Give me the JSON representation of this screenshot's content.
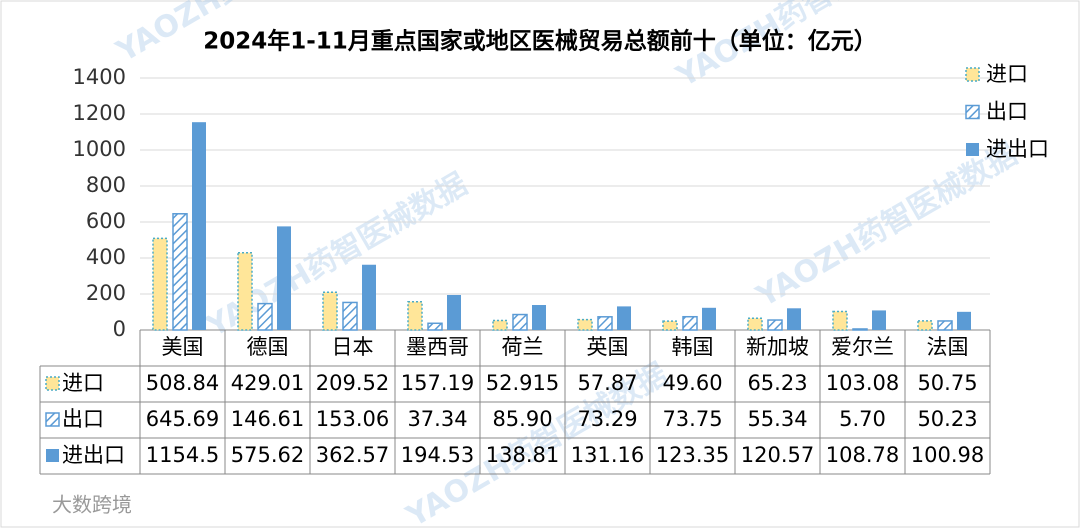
{
  "chart_data": {
    "type": "bar",
    "title": "2024年1-11月重点国家或地区医械贸易总额前十（单位：亿元）",
    "watermark": "YAOZH药智医械数据",
    "brand": "大数跨境",
    "categories": [
      "美国",
      "德国",
      "日本",
      "墨西哥",
      "荷兰",
      "英国",
      "韩国",
      "新加坡",
      "爱尔兰",
      "法国"
    ],
    "series": [
      {
        "name": "进口",
        "color": "#ffe699",
        "edge": "#4bacc6",
        "pattern": "dotted",
        "values": [
          508.84,
          429.01,
          209.52,
          157.19,
          52.915,
          57.87,
          49.6,
          65.23,
          103.08,
          50.75
        ],
        "value_labels": [
          "508.84",
          "429.01",
          "209.52",
          "157.19",
          "52.915",
          "57.87",
          "49.60",
          "65.23",
          "103.08",
          "50.75"
        ]
      },
      {
        "name": "出口",
        "color": "#5b9bd5",
        "edge": "#5b9bd5",
        "pattern": "hatch",
        "values": [
          645.69,
          146.61,
          153.06,
          37.34,
          85.9,
          73.29,
          73.75,
          55.34,
          5.7,
          50.23
        ],
        "value_labels": [
          "645.69",
          "146.61",
          "153.06",
          "37.34",
          "85.90",
          "73.29",
          "73.75",
          "55.34",
          "5.70",
          "50.23"
        ]
      },
      {
        "name": "进出口",
        "color": "#5b9bd5",
        "edge": "#5b9bd5",
        "pattern": "solid",
        "values": [
          1154.5,
          575.62,
          362.57,
          194.53,
          138.81,
          131.16,
          123.35,
          120.57,
          108.78,
          100.98
        ],
        "value_labels": [
          "1154.5",
          "575.62",
          "362.57",
          "194.53",
          "138.81",
          "131.16",
          "123.35",
          "120.57",
          "108.78",
          "100.98"
        ]
      }
    ],
    "ylim": [
      0,
      1400
    ],
    "yticks": [
      0,
      200,
      400,
      600,
      800,
      1000,
      1200,
      1400
    ],
    "grid": true,
    "legend": "top-right"
  }
}
